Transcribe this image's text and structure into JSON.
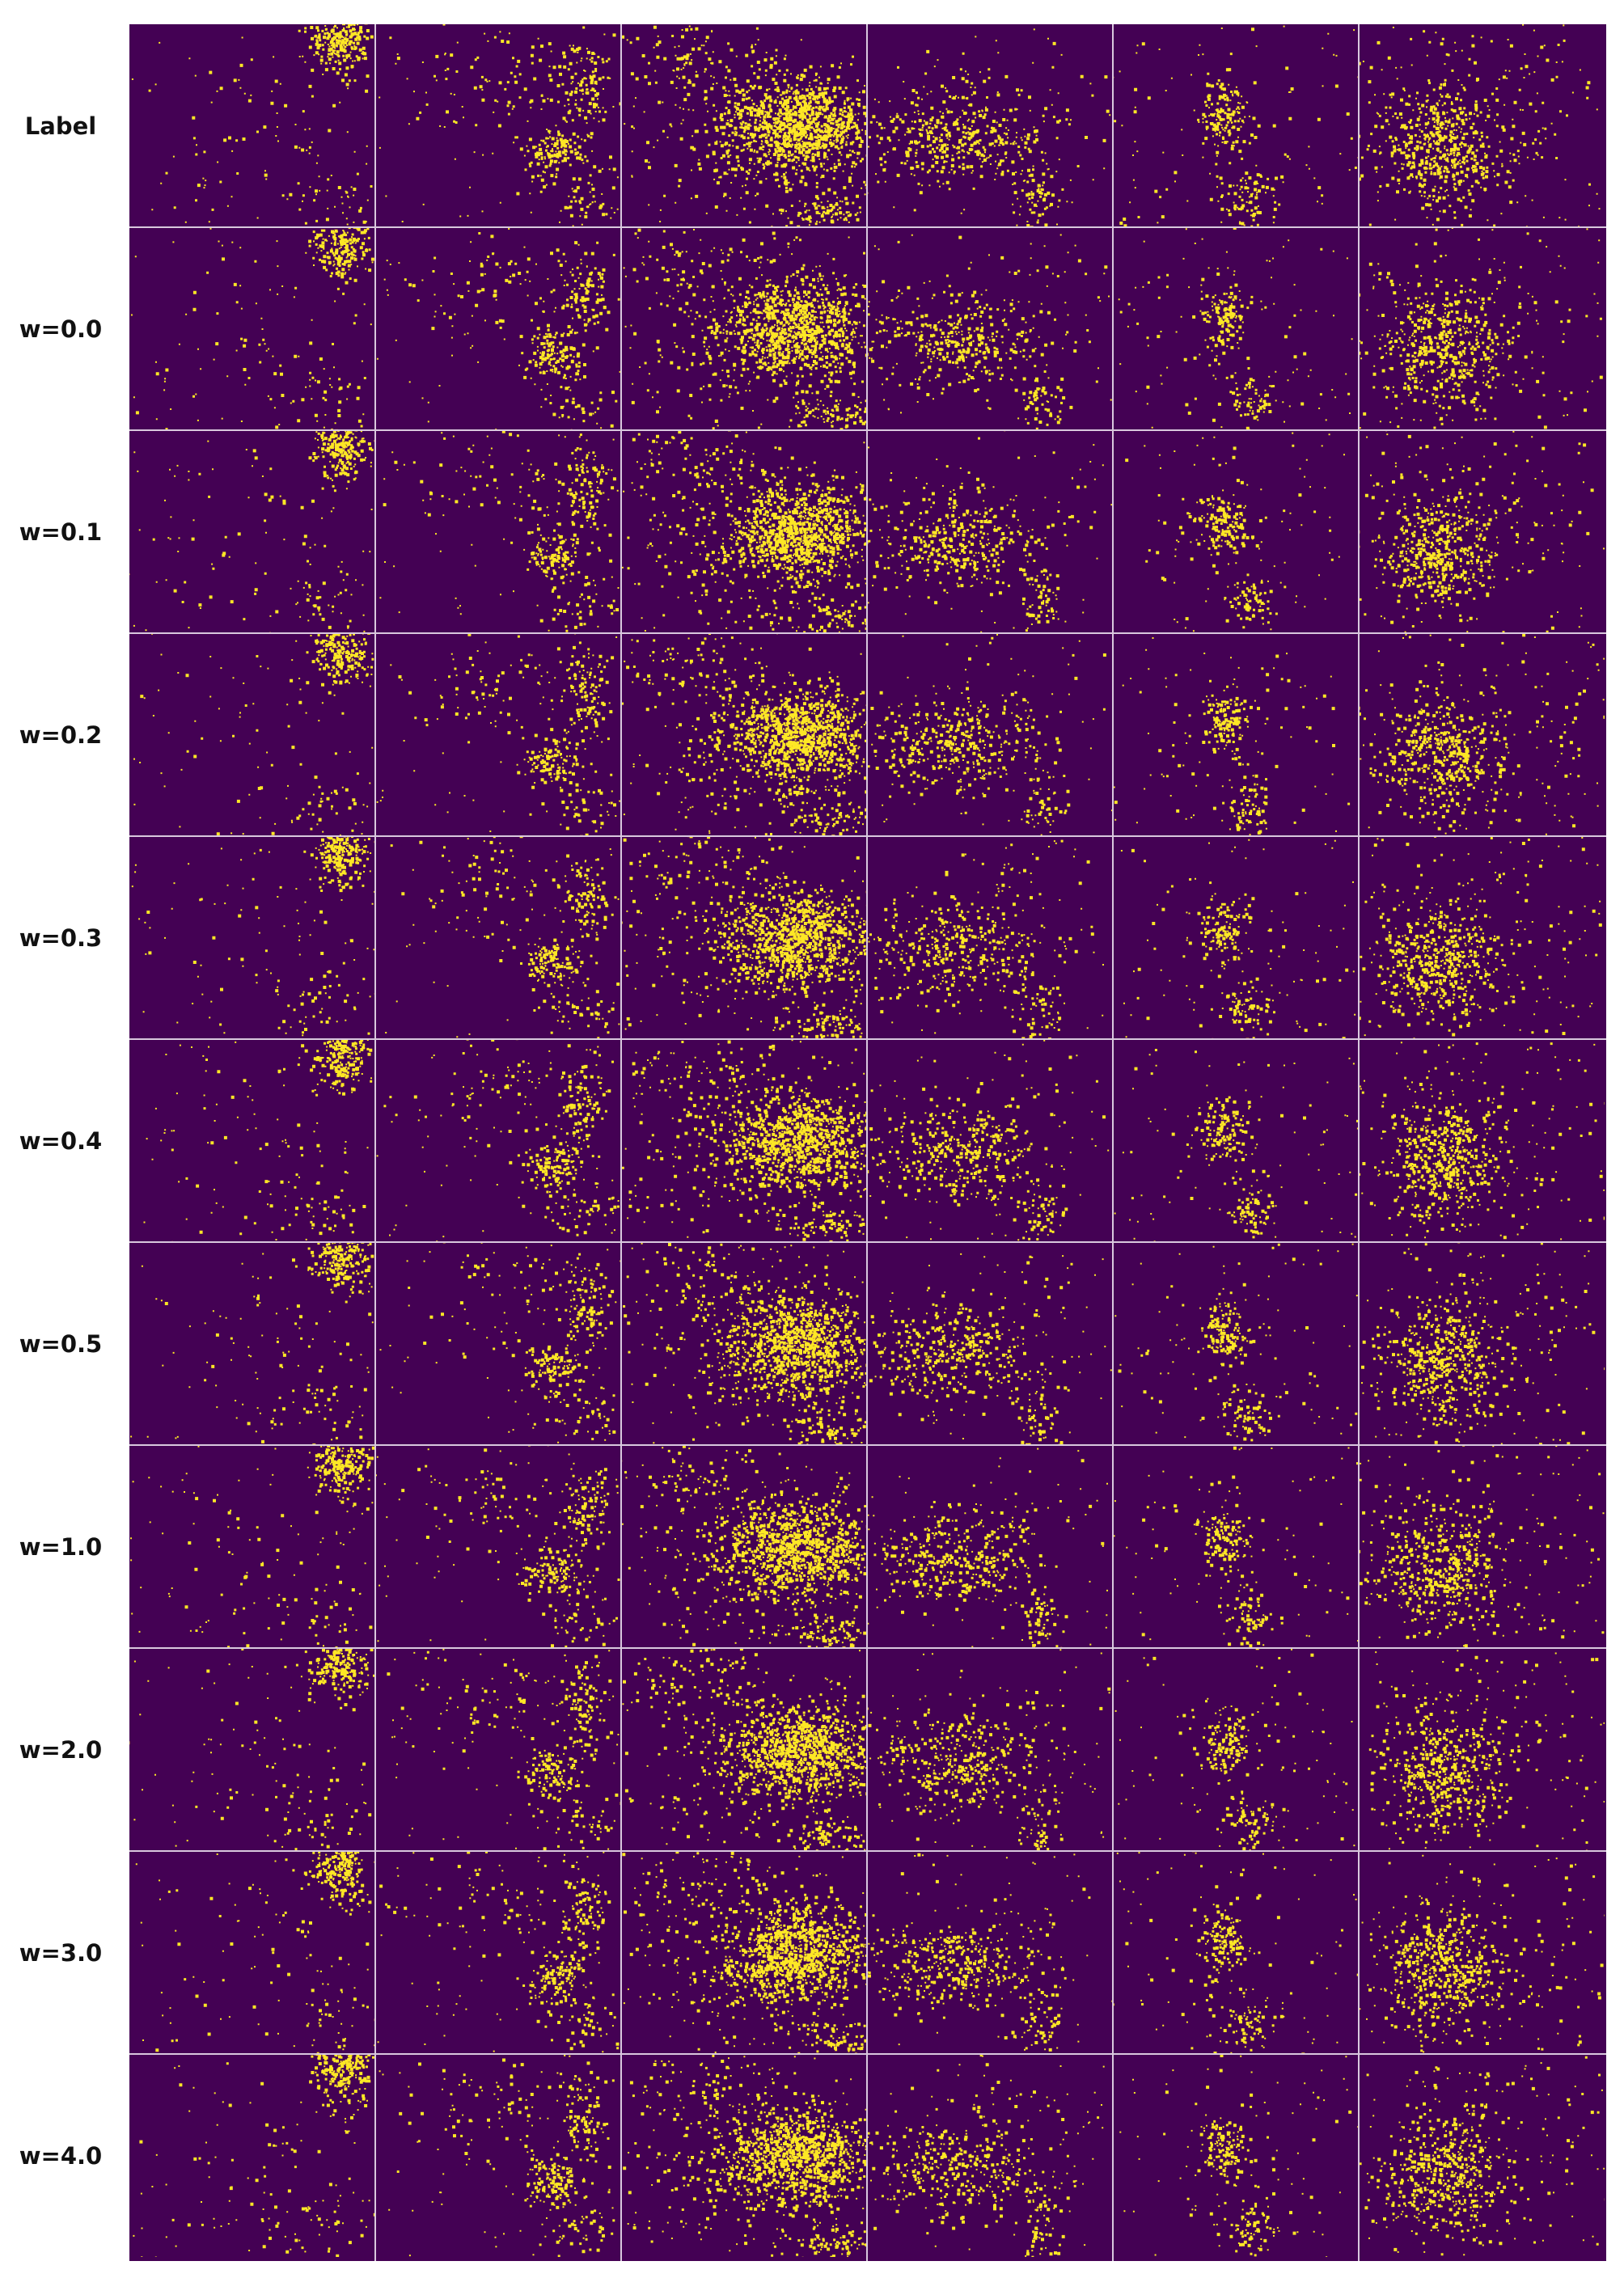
{
  "figure": {
    "row_labels": [
      "Label",
      "w=0.0",
      "w=0.1",
      "w=0.2",
      "w=0.3",
      "w=0.4",
      "w=0.5",
      "w=1.0",
      "w=2.0",
      "w=3.0",
      "w=4.0"
    ],
    "columns": 6,
    "colors": {
      "background": "#440154",
      "foreground": "#fde725",
      "separator": "#d9c8de"
    }
  }
}
